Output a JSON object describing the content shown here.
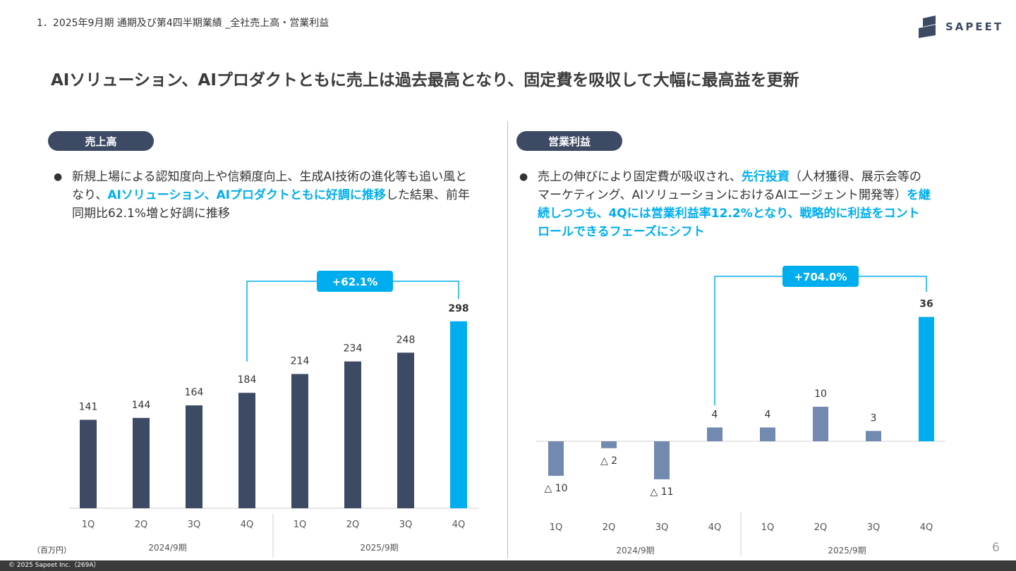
{
  "breadcrumb": "1．2025年9月期 通期及び第4四半期業績 _全社売上高・営業利益",
  "logo": {
    "text": "SAPEET",
    "color": "#3c4a64"
  },
  "headline": "AIソリューション、AIプロダクトともに売上は過去最高となり、固定費を吸収して大幅に最高益を更新",
  "left": {
    "pill": "売上高",
    "bullet": {
      "line1": "新規上場による認知度向上や信頼度向上、生成AI技術の進化等も追い風と",
      "line2_pre": "なり、",
      "line2_hl": "AIソリューション、AIプロダクトともに好調に推移",
      "line2_post": "した結果、前年",
      "line3": "同期比62.1%増と好調に推移"
    }
  },
  "right": {
    "pill": "営業利益",
    "bullet": {
      "line1_pre": "売上の伸びにより固定費が吸収され、",
      "line1_hl": "先行投資",
      "line1_post": "（人材獲得、展示会等の",
      "line2_pre": "マーケティング、AIソリューションにおけるAIエージェント開発等）",
      "line2_hl": "を継",
      "line3": "続しつつも、4Qには営業利益率12.2%となり、戦略的に利益をコント",
      "line4": "ロールできるフェーズにシフト"
    }
  },
  "unit_label": "（百万円）",
  "page_number": "6",
  "footer": "© 2025 Sapeet Inc.（269A）",
  "colors": {
    "dark_bar": "#3c4a64",
    "light_bar": "#7289b0",
    "accent": "#00aeef"
  },
  "chart_data": [
    {
      "type": "bar",
      "categories": [
        "1Q",
        "2Q",
        "3Q",
        "4Q",
        "1Q",
        "2Q",
        "3Q",
        "4Q"
      ],
      "groups": [
        "2024/9期",
        "2025/9期"
      ],
      "values": [
        141,
        144,
        164,
        184,
        214,
        234,
        248,
        298
      ],
      "labels": [
        "141",
        "144",
        "164",
        "184",
        "214",
        "234",
        "248",
        "298"
      ],
      "highlight_index": 7,
      "growth_label": "+62.1%",
      "growth_from_index": 3,
      "growth_to_index": 7
    },
    {
      "type": "bar",
      "categories": [
        "1Q",
        "2Q",
        "3Q",
        "4Q",
        "1Q",
        "2Q",
        "3Q",
        "4Q"
      ],
      "groups": [
        "2024/9期",
        "2025/9期"
      ],
      "values": [
        -10,
        -2,
        -11,
        4,
        4,
        10,
        3,
        36
      ],
      "labels": [
        "△ 10",
        "△ 2",
        "△ 11",
        "4",
        "4",
        "10",
        "3",
        "36"
      ],
      "highlight_index": 7,
      "growth_label": "+704.0%",
      "growth_from_index": 3,
      "growth_to_index": 7
    }
  ]
}
